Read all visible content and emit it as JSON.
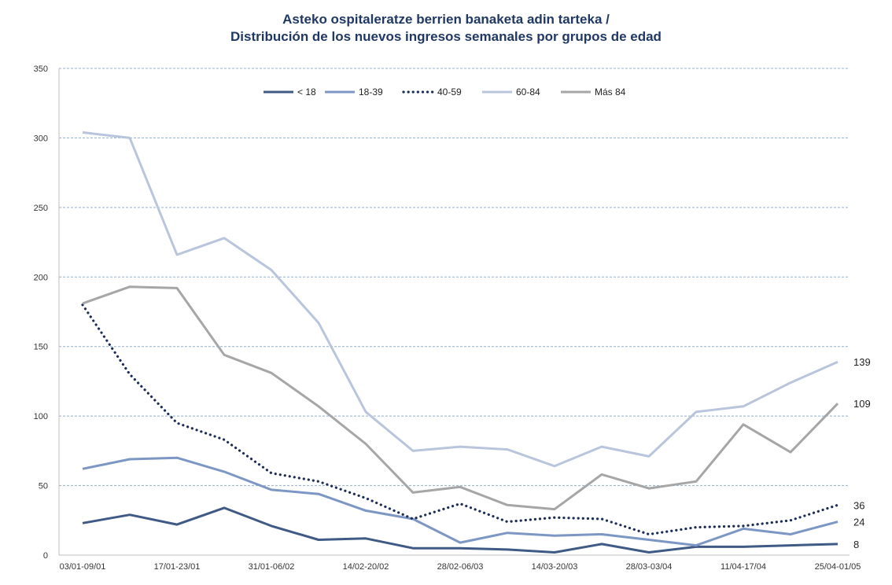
{
  "chart_data": {
    "type": "line",
    "title_line1": "Asteko ospitaleratze berrien banaketa adin tarteka /",
    "title_line2": "Distribución de los nuevos ingresos semanales por grupos de edad",
    "xlabel": "",
    "ylabel": "",
    "ylim": [
      0,
      350
    ],
    "yticks": [
      0,
      50,
      100,
      150,
      200,
      250,
      300,
      350
    ],
    "grid": true,
    "legend_position": "top",
    "x_tick_labels": [
      "03/01-09/01",
      "17/01-23/01",
      "31/01-06/02",
      "14/02-20/02",
      "28/02-06/03",
      "14/03-20/03",
      "28/03-03/04",
      "11/04-17/04",
      "25/04-01/05"
    ],
    "x_tick_indices": [
      0,
      2,
      4,
      6,
      8,
      10,
      12,
      14,
      16
    ],
    "n_points": 17,
    "series": [
      {
        "name": "< 18",
        "color": "#3f5a85",
        "dash": "solid",
        "values": [
          23,
          29,
          22,
          34,
          21,
          11,
          12,
          5,
          5,
          4,
          2,
          8,
          2,
          6,
          6,
          7,
          8
        ],
        "end_label": "8"
      },
      {
        "name": "18-39",
        "color": "#7d97c4",
        "dash": "solid",
        "values": [
          62,
          69,
          70,
          60,
          47,
          44,
          32,
          26,
          9,
          16,
          14,
          15,
          11,
          7,
          19,
          15,
          24
        ],
        "end_label": "24"
      },
      {
        "name": "40-59",
        "color": "#1c2e57",
        "dash": "dotted",
        "values": [
          180,
          130,
          95,
          83,
          59,
          53,
          41,
          26,
          37,
          24,
          27,
          26,
          15,
          20,
          21,
          25,
          36
        ],
        "end_label": "36"
      },
      {
        "name": "60-84",
        "color": "#b8c5dc",
        "dash": "solid",
        "values": [
          304,
          300,
          216,
          228,
          205,
          167,
          103,
          75,
          78,
          76,
          64,
          78,
          71,
          103,
          107,
          124,
          139
        ],
        "end_label": "139"
      },
      {
        "name": "Más 84",
        "color": "#a6a6a6",
        "dash": "solid",
        "values": [
          181,
          193,
          192,
          144,
          131,
          107,
          80,
          45,
          49,
          36,
          33,
          58,
          48,
          53,
          94,
          74,
          109
        ],
        "end_label": "109"
      }
    ]
  }
}
